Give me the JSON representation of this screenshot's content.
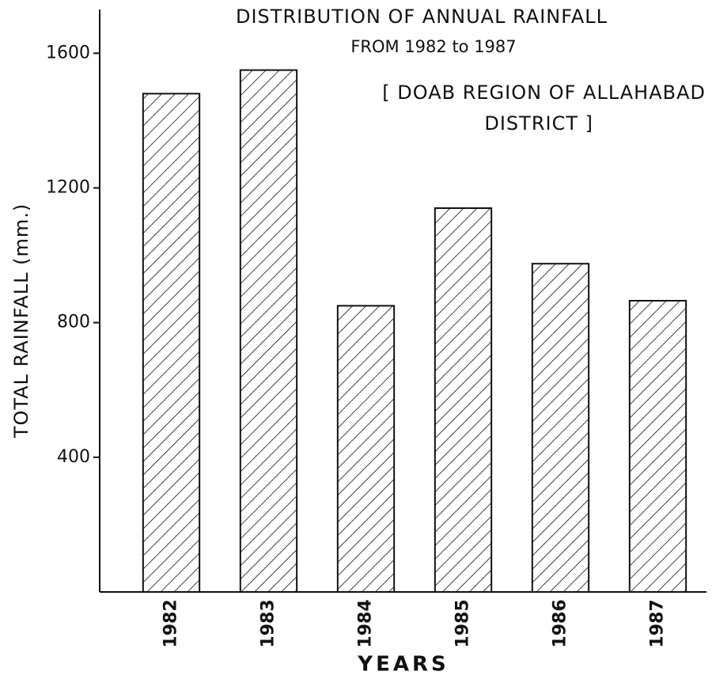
{
  "chart_data": {
    "type": "bar",
    "title": "DISTRIBUTION OF ANNUAL RAINFALL",
    "subtitle": "FROM 1982 to 1987",
    "annotation": [
      "[ DOAB REGION OF ALLAHABAD",
      "DISTRICT ]"
    ],
    "x_label": "YEARS",
    "y_label": "TOTAL RAINFALL (mm.)",
    "categories": [
      "1982",
      "1983",
      "1984",
      "1985",
      "1986",
      "1987"
    ],
    "values": [
      1480,
      1550,
      850,
      1140,
      975,
      865
    ],
    "color": "#111111",
    "ylim": [
      0,
      1730
    ],
    "yticks": [
      400,
      800,
      1200,
      1600
    ],
    "grid": false
  }
}
